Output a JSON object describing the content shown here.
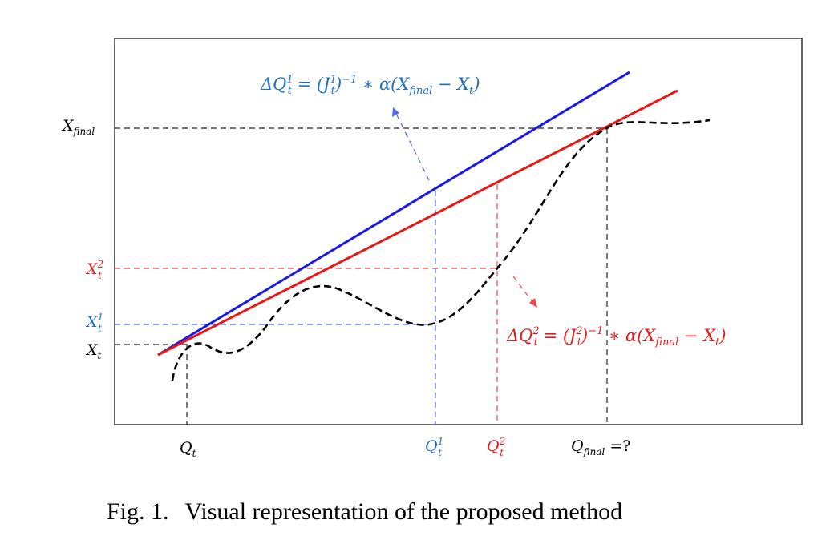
{
  "colors": {
    "blue": "#1f6fc0",
    "red": "#e0201e",
    "blue_line": "#1a1ae6",
    "red_line": "#e81818",
    "black": "#000000"
  },
  "equations": {
    "eq1": {
      "a": "ΔQ",
      "a_sup": "1",
      "a_sub": "t",
      "b": " = (J",
      "b_sup": "1",
      "b_sub": "t",
      "c": ")",
      "c_sup": "−1",
      "d": " ∗ α(X",
      "d_sub": "final",
      "e": " − X",
      "e_sub": "t",
      "f": ")"
    },
    "eq2": {
      "a": "ΔQ",
      "a_sup": "2",
      "a_sub": "t",
      "b": " = (J",
      "b_sup": "2",
      "b_sub": "t",
      "c": ")",
      "c_sup": "−1",
      "d": " ∗ α(X",
      "d_sub": "final",
      "e": " − X",
      "e_sub": "t",
      "f": ")"
    }
  },
  "y_labels": {
    "x_final": {
      "base": "X",
      "sub": "final"
    },
    "x_t2": {
      "base": "X",
      "sup": "2",
      "sub": "t"
    },
    "x_t1": {
      "base": "X",
      "sup": "1",
      "sub": "t"
    },
    "x_t": {
      "base": "X",
      "sub": "t"
    }
  },
  "x_labels": {
    "q_t": {
      "base": "Q",
      "sub": "t"
    },
    "q_t1": {
      "base": "Q",
      "sup": "1",
      "sub": "t"
    },
    "q_t2": {
      "base": "Q",
      "sup": "2",
      "sub": "t"
    },
    "q_final": {
      "base": "Q",
      "sub": "final",
      "suffix": " =?"
    }
  },
  "caption": {
    "label": "Fig. 1.",
    "text": "Visual representation of the proposed method"
  }
}
